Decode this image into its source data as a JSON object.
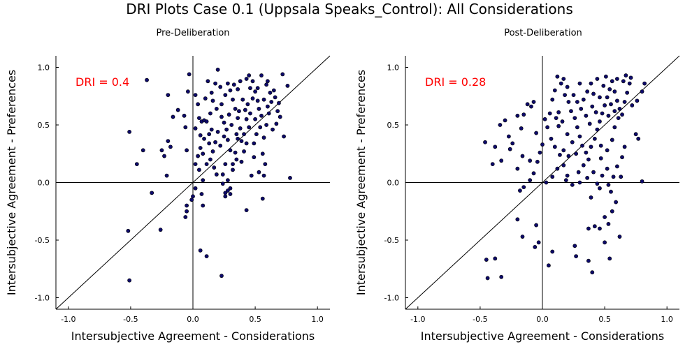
{
  "figure": {
    "title": "DRI Plots Case 0.1 (Uppsala Speaks_Control): All Considerations"
  },
  "colors": {
    "point_fill": "#0d0a6b",
    "point_stroke": "#000000",
    "dri_text": "#ff0000",
    "axis_line": "#000000"
  },
  "chart_data": [
    {
      "type": "scatter",
      "title": "Pre-Deliberation",
      "xlabel": "Intersubjective Agreement - Considerations",
      "ylabel": "Intersubjective Agreement - Preferences",
      "xlim": [
        -1.1,
        1.1
      ],
      "ylim": [
        -1.1,
        1.1
      ],
      "xticks": [
        "-1.0",
        "-0.5",
        "0.0",
        "0.5",
        "1.0"
      ],
      "yticks": [
        "-1.0",
        "-0.5",
        "0.0",
        "0.5",
        "1.0"
      ],
      "grid": false,
      "annotation": "DRI = 0.4",
      "reference_lines": [
        "y = x",
        "x = 0",
        "y = 0"
      ],
      "points": [
        [
          -0.37,
          0.89
        ],
        [
          -0.2,
          0.76
        ],
        [
          -0.16,
          0.57
        ],
        [
          -0.12,
          0.63
        ],
        [
          -0.07,
          0.58
        ],
        [
          -0.2,
          0.36
        ],
        [
          -0.18,
          0.31
        ],
        [
          -0.23,
          0.23
        ],
        [
          -0.25,
          0.28
        ],
        [
          -0.4,
          0.28
        ],
        [
          -0.45,
          0.16
        ],
        [
          -0.51,
          0.44
        ],
        [
          -0.21,
          0.06
        ],
        [
          -0.33,
          -0.09
        ],
        [
          -0.06,
          0.48
        ],
        [
          -0.05,
          0.28
        ],
        [
          -0.04,
          0.79
        ],
        [
          -0.03,
          0.94
        ],
        [
          0.02,
          0.76
        ],
        [
          0.04,
          0.68
        ],
        [
          0.05,
          0.56
        ],
        [
          0.07,
          0.53
        ],
        [
          0.09,
          0.54
        ],
        [
          0.09,
          0.38
        ],
        [
          0.06,
          0.3
        ],
        [
          0.04,
          0.23
        ],
        [
          0.02,
          0.16
        ],
        [
          0.05,
          0.11
        ],
        [
          0.11,
          0.16
        ],
        [
          0.14,
          0.2
        ],
        [
          0.16,
          0.27
        ],
        [
          0.18,
          0.35
        ],
        [
          0.13,
          0.42
        ],
        [
          0.11,
          0.53
        ],
        [
          0.14,
          0.6
        ],
        [
          0.16,
          0.71
        ],
        [
          0.18,
          0.86
        ],
        [
          0.2,
          0.98
        ],
        [
          0.22,
          0.83
        ],
        [
          0.23,
          0.68
        ],
        [
          0.25,
          0.52
        ],
        [
          0.27,
          0.46
        ],
        [
          0.28,
          0.37
        ],
        [
          0.3,
          0.28
        ],
        [
          0.26,
          0.16
        ],
        [
          0.24,
          0.07
        ],
        [
          0.28,
          0.02
        ],
        [
          0.3,
          -0.05
        ],
        [
          0.26,
          -0.12
        ],
        [
          0.3,
          -0.1
        ],
        [
          0.32,
          0.16
        ],
        [
          0.34,
          0.26
        ],
        [
          0.36,
          0.38
        ],
        [
          0.38,
          0.47
        ],
        [
          0.36,
          0.56
        ],
        [
          0.34,
          0.64
        ],
        [
          0.32,
          0.72
        ],
        [
          0.36,
          0.81
        ],
        [
          0.38,
          0.88
        ],
        [
          0.4,
          0.72
        ],
        [
          0.42,
          0.63
        ],
        [
          0.43,
          0.55
        ],
        [
          0.45,
          0.48
        ],
        [
          0.43,
          0.34
        ],
        [
          0.41,
          0.27
        ],
        [
          0.39,
          0.18
        ],
        [
          0.46,
          0.82
        ],
        [
          0.48,
          0.88
        ],
        [
          0.5,
          0.79
        ],
        [
          0.52,
          0.71
        ],
        [
          0.53,
          0.64
        ],
        [
          0.55,
          0.58
        ],
        [
          0.54,
          0.48
        ],
        [
          0.51,
          0.42
        ],
        [
          0.49,
          0.34
        ],
        [
          0.57,
          0.39
        ],
        [
          0.59,
          0.5
        ],
        [
          0.61,
          0.6
        ],
        [
          0.63,
          0.7
        ],
        [
          0.65,
          0.8
        ],
        [
          0.68,
          0.62
        ],
        [
          0.7,
          0.57
        ],
        [
          0.73,
          0.4
        ],
        [
          0.76,
          0.84
        ],
        [
          0.78,
          0.04
        ],
        [
          0.57,
          0.06
        ],
        [
          0.56,
          0.25
        ],
        [
          0.58,
          0.16
        ],
        [
          0.43,
          0.9
        ],
        [
          0.45,
          0.93
        ],
        [
          0.12,
          0.88
        ],
        [
          0.15,
          0.78
        ],
        [
          0.26,
          0.76
        ],
        [
          0.28,
          0.86
        ],
        [
          0.3,
          0.8
        ],
        [
          0.33,
          0.85
        ],
        [
          0.48,
          0.73
        ],
        [
          0.52,
          0.82
        ],
        [
          0.55,
          0.93
        ],
        [
          0.59,
          0.85
        ],
        [
          0.62,
          0.78
        ],
        [
          0.66,
          0.74
        ],
        [
          0.72,
          0.94
        ],
        [
          0.6,
          0.66
        ],
        [
          0.46,
          0.6
        ],
        [
          0.41,
          0.42
        ],
        [
          0.39,
          0.36
        ],
        [
          0.35,
          0.2
        ],
        [
          0.2,
          0.44
        ],
        [
          0.22,
          0.32
        ],
        [
          0.17,
          0.13
        ],
        [
          0.19,
          0.07
        ],
        [
          0.08,
          0.02
        ],
        [
          0.02,
          -0.05
        ],
        [
          0.0,
          -0.12
        ],
        [
          -0.01,
          -0.15
        ],
        [
          -0.05,
          -0.2
        ],
        [
          -0.05,
          -0.25
        ],
        [
          -0.06,
          -0.3
        ],
        [
          0.07,
          -0.1
        ],
        [
          0.08,
          -0.2
        ],
        [
          0.28,
          -0.07
        ],
        [
          0.24,
          -0.01
        ],
        [
          0.26,
          -0.09
        ],
        [
          0.43,
          -0.24
        ],
        [
          0.56,
          -0.14
        ],
        [
          -0.26,
          -0.41
        ],
        [
          -0.52,
          -0.42
        ],
        [
          0.06,
          -0.59
        ],
        [
          0.11,
          -0.64
        ],
        [
          -0.51,
          -0.85
        ],
        [
          0.23,
          -0.81
        ],
        [
          0.32,
          0.11
        ],
        [
          0.49,
          0.22
        ],
        [
          0.47,
          0.06
        ],
        [
          0.53,
          0.09
        ],
        [
          0.64,
          0.46
        ],
        [
          0.67,
          0.51
        ],
        [
          0.06,
          0.41
        ],
        [
          0.13,
          0.34
        ],
        [
          0.29,
          0.59
        ],
        [
          0.31,
          0.5
        ],
        [
          0.44,
          0.68
        ],
        [
          0.6,
          0.88
        ],
        [
          0.23,
          0.57
        ],
        [
          0.19,
          0.64
        ],
        [
          0.37,
          0.62
        ],
        [
          0.5,
          0.55
        ],
        [
          0.02,
          0.47
        ],
        [
          0.1,
          0.73
        ],
        [
          0.35,
          0.42
        ],
        [
          0.57,
          0.72
        ],
        [
          0.69,
          0.69
        ],
        [
          0.15,
          0.46
        ],
        [
          0.08,
          0.25
        ],
        [
          0.25,
          0.4
        ]
      ]
    },
    {
      "type": "scatter",
      "title": "Post-Deliberation",
      "xlabel": "Intersubjective Agreement - Considerations",
      "ylabel": "Intersubjective Agreement - Preferences",
      "xlim": [
        -1.1,
        1.1
      ],
      "ylim": [
        -1.1,
        1.1
      ],
      "xticks": [
        "-1.0",
        "-0.5",
        "0.0",
        "0.5",
        "1.0"
      ],
      "yticks": [
        "-1.0",
        "-0.5",
        "0.0",
        "0.5",
        "1.0"
      ],
      "grid": false,
      "annotation": "DRI = 0.28",
      "reference_lines": [
        "y = x",
        "x = 0",
        "y = 0"
      ],
      "points": [
        [
          -0.46,
          0.35
        ],
        [
          -0.38,
          0.31
        ],
        [
          -0.34,
          0.5
        ],
        [
          -0.3,
          0.54
        ],
        [
          -0.27,
          0.4
        ],
        [
          -0.24,
          0.34
        ],
        [
          -0.2,
          0.58
        ],
        [
          -0.17,
          0.47
        ],
        [
          -0.12,
          0.68
        ],
        [
          -0.09,
          0.66
        ],
        [
          -0.07,
          0.7
        ],
        [
          -0.05,
          0.43
        ],
        [
          -0.02,
          0.26
        ],
        [
          -0.04,
          0.18
        ],
        [
          -0.07,
          0.08
        ],
        [
          -0.1,
          0.02
        ],
        [
          -0.15,
          -0.04
        ],
        [
          -0.18,
          -0.07
        ],
        [
          -0.2,
          0.12
        ],
        [
          -0.16,
          0.23
        ],
        [
          -0.1,
          0.19
        ],
        [
          -0.33,
          0.19
        ],
        [
          -0.4,
          0.16
        ],
        [
          -0.05,
          -0.37
        ],
        [
          -0.2,
          -0.32
        ],
        [
          -0.16,
          -0.47
        ],
        [
          -0.06,
          -0.56
        ],
        [
          -0.38,
          -0.66
        ],
        [
          -0.33,
          -0.82
        ],
        [
          -0.44,
          -0.83
        ],
        [
          -0.45,
          -0.67
        ],
        [
          -0.03,
          -0.52
        ],
        [
          0.05,
          -0.72
        ],
        [
          0.08,
          -0.6
        ],
        [
          0.26,
          -0.55
        ],
        [
          0.27,
          -0.64
        ],
        [
          0.37,
          -0.68
        ],
        [
          0.4,
          -0.78
        ],
        [
          0.37,
          -0.4
        ],
        [
          0.42,
          -0.38
        ],
        [
          0.46,
          -0.4
        ],
        [
          0.5,
          -0.52
        ],
        [
          0.53,
          -0.36
        ],
        [
          0.56,
          -0.25
        ],
        [
          0.59,
          -0.17
        ],
        [
          0.55,
          -0.08
        ],
        [
          0.53,
          -0.02
        ],
        [
          0.5,
          -0.3
        ],
        [
          0.54,
          -0.66
        ],
        [
          0.62,
          -0.47
        ],
        [
          0.39,
          -0.13
        ],
        [
          0.46,
          -0.05
        ],
        [
          0.48,
          0.06
        ],
        [
          0.41,
          0.09
        ],
        [
          0.36,
          0.04
        ],
        [
          0.3,
          0.0
        ],
        [
          0.24,
          -0.02
        ],
        [
          0.2,
          0.06
        ],
        [
          0.17,
          0.15
        ],
        [
          0.14,
          0.24
        ],
        [
          0.1,
          0.31
        ],
        [
          0.07,
          0.38
        ],
        [
          0.04,
          0.48
        ],
        [
          0.02,
          0.55
        ],
        [
          0.06,
          0.6
        ],
        [
          0.08,
          0.72
        ],
        [
          0.1,
          0.8
        ],
        [
          0.12,
          0.92
        ],
        [
          0.15,
          0.86
        ],
        [
          0.18,
          0.76
        ],
        [
          0.21,
          0.7
        ],
        [
          0.23,
          0.62
        ],
        [
          0.26,
          0.56
        ],
        [
          0.28,
          0.48
        ],
        [
          0.3,
          0.4
        ],
        [
          0.32,
          0.32
        ],
        [
          0.35,
          0.26
        ],
        [
          0.37,
          0.2
        ],
        [
          0.39,
          0.31
        ],
        [
          0.42,
          0.38
        ],
        [
          0.44,
          0.46
        ],
        [
          0.46,
          0.53
        ],
        [
          0.48,
          0.6
        ],
        [
          0.5,
          0.67
        ],
        [
          0.52,
          0.74
        ],
        [
          0.54,
          0.81
        ],
        [
          0.56,
          0.88
        ],
        [
          0.58,
          0.79
        ],
        [
          0.6,
          0.71
        ],
        [
          0.62,
          0.64
        ],
        [
          0.64,
          0.59
        ],
        [
          0.66,
          0.7
        ],
        [
          0.68,
          0.78
        ],
        [
          0.7,
          0.86
        ],
        [
          0.72,
          0.67
        ],
        [
          0.75,
          0.42
        ],
        [
          0.77,
          0.38
        ],
        [
          0.8,
          0.79
        ],
        [
          0.82,
          0.86
        ],
        [
          0.8,
          0.01
        ],
        [
          0.66,
          0.31
        ],
        [
          0.64,
          0.22
        ],
        [
          0.6,
          0.14
        ],
        [
          0.57,
          0.05
        ],
        [
          0.46,
          0.74
        ],
        [
          0.44,
          0.9
        ],
        [
          0.36,
          0.79
        ],
        [
          0.33,
          0.72
        ],
        [
          0.31,
          0.64
        ],
        [
          0.3,
          0.86
        ],
        [
          0.25,
          0.76
        ],
        [
          0.2,
          0.83
        ],
        [
          0.17,
          0.9
        ],
        [
          0.24,
          0.35
        ],
        [
          0.21,
          0.23
        ],
        [
          0.17,
          0.28
        ],
        [
          0.12,
          0.12
        ],
        [
          0.08,
          0.05
        ],
        [
          0.03,
          0.0
        ],
        [
          0.13,
          0.49
        ],
        [
          0.11,
          0.56
        ],
        [
          0.16,
          0.53
        ],
        [
          0.35,
          0.58
        ],
        [
          0.38,
          0.51
        ],
        [
          0.47,
          0.21
        ],
        [
          0.52,
          0.28
        ],
        [
          0.56,
          0.37
        ],
        [
          0.58,
          0.48
        ],
        [
          0.61,
          0.56
        ],
        [
          0.49,
          0.84
        ],
        [
          0.51,
          0.92
        ],
        [
          0.6,
          0.9
        ],
        [
          0.67,
          0.93
        ],
        [
          0.55,
          0.68
        ],
        [
          0.43,
          0.61
        ],
        [
          0.41,
          0.77
        ],
        [
          0.27,
          0.25
        ],
        [
          0.33,
          0.15
        ],
        [
          0.2,
          0.42
        ],
        [
          -0.15,
          0.59
        ],
        [
          -0.26,
          0.29
        ],
        [
          0.0,
          0.33
        ],
        [
          0.19,
          0.02
        ],
        [
          0.29,
          0.09
        ],
        [
          0.44,
          -0.01
        ],
        [
          0.52,
          0.12
        ],
        [
          0.4,
          0.66
        ],
        [
          0.47,
          0.32
        ],
        [
          0.63,
          0.05
        ],
        [
          0.58,
          0.62
        ],
        [
          0.53,
          0.58
        ],
        [
          0.71,
          0.91
        ],
        [
          0.76,
          0.71
        ],
        [
          0.65,
          0.88
        ],
        [
          0.39,
          0.86
        ],
        [
          0.28,
          0.7
        ],
        [
          0.13,
          0.61
        ]
      ]
    }
  ]
}
